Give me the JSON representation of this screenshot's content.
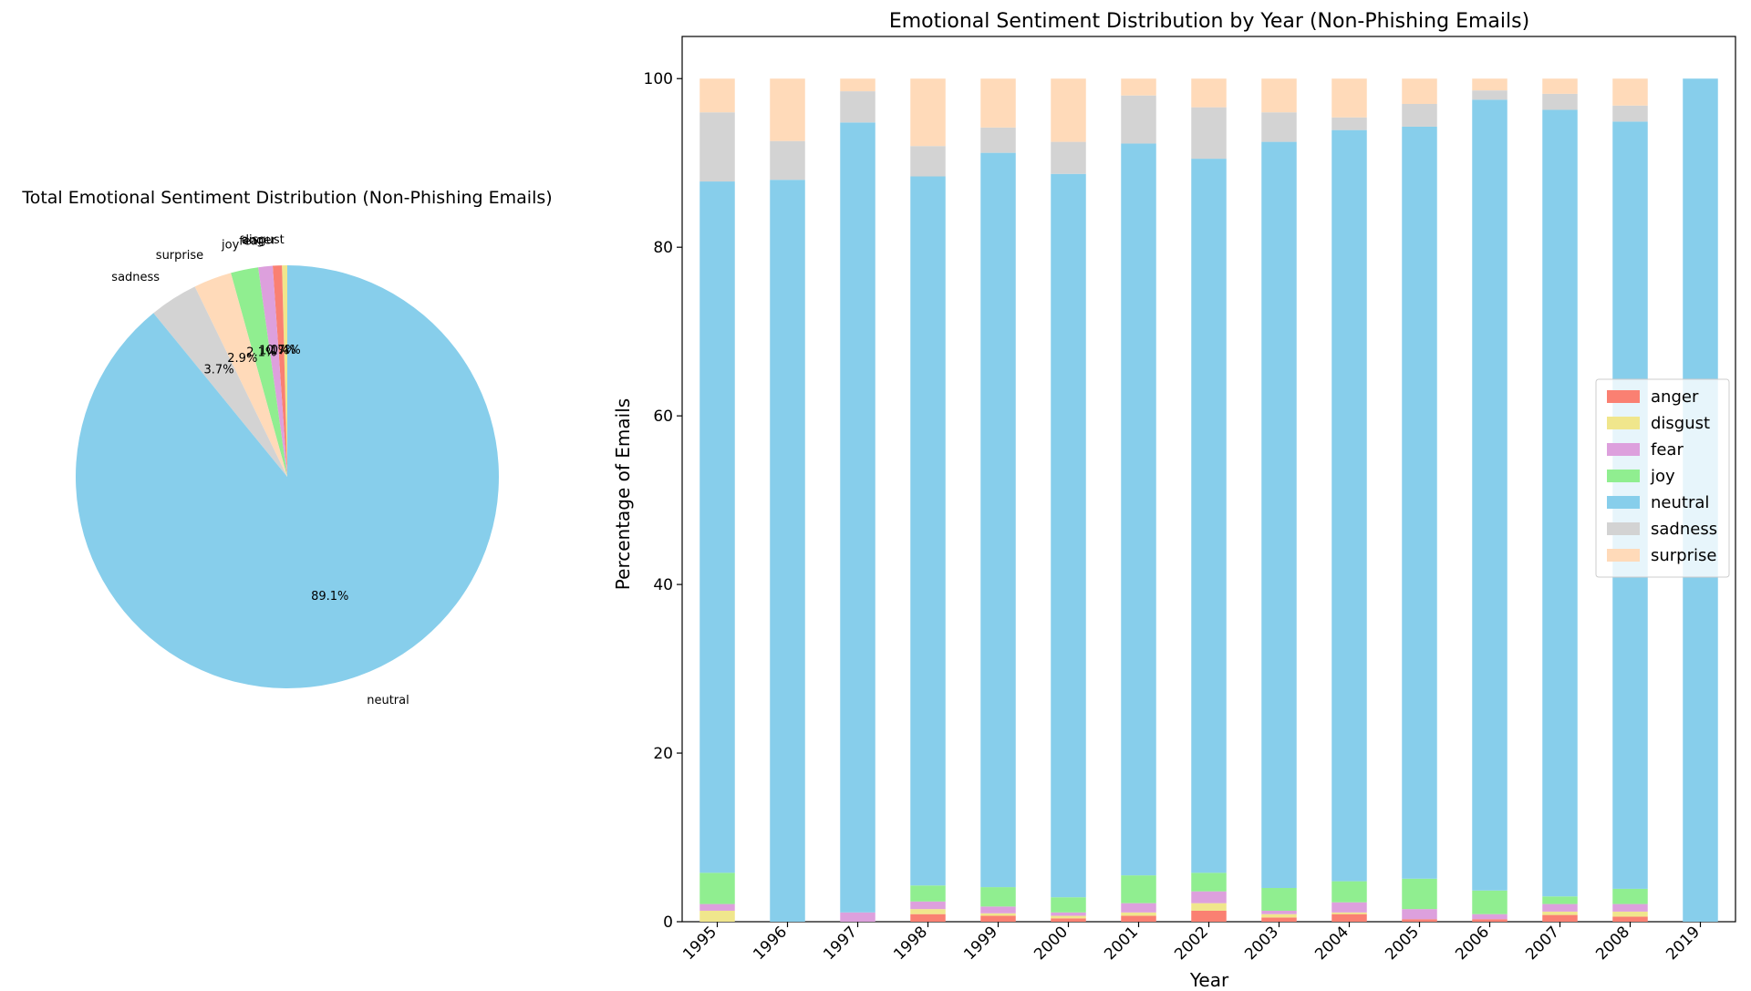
{
  "chart_data": [
    {
      "type": "pie",
      "title": "Total Emotional Sentiment Distribution (Non-Phishing Emails)",
      "start_angle": 90,
      "direction": "counterclockwise",
      "slices": [
        {
          "label": "disgust",
          "value": 0.4,
          "pct_label": "0.4%",
          "color": "#f0e68c"
        },
        {
          "label": "anger",
          "value": 0.7,
          "pct_label": "0.7%",
          "color": "#fa8072"
        },
        {
          "label": "fear",
          "value": 1.1,
          "pct_label": "1.1%",
          "color": "#dda0dd"
        },
        {
          "label": "joy",
          "value": 2.1,
          "pct_label": "2.1%",
          "color": "#90ee90"
        },
        {
          "label": "surprise",
          "value": 2.9,
          "pct_label": "2.9%",
          "color": "#ffdab9"
        },
        {
          "label": "sadness",
          "value": 3.7,
          "pct_label": "3.7%",
          "color": "#d3d3d3"
        },
        {
          "label": "neutral",
          "value": 89.1,
          "pct_label": "89.1%",
          "color": "#87ceeb"
        }
      ]
    },
    {
      "type": "bar",
      "stacked": true,
      "title": "Emotional Sentiment Distribution by Year (Non-Phishing Emails)",
      "xlabel": "Year",
      "ylabel": "Percentage of Emails",
      "ylim": [
        0,
        105
      ],
      "yticks": [
        0,
        20,
        40,
        60,
        80,
        100
      ],
      "categories": [
        "1995",
        "1996",
        "1997",
        "1998",
        "1999",
        "2000",
        "2001",
        "2002",
        "2003",
        "2004",
        "2005",
        "2006",
        "2007",
        "2008",
        "2019"
      ],
      "legend_position": "center-right",
      "series": [
        {
          "name": "anger",
          "color": "#fa8072",
          "values": [
            0,
            0,
            0,
            0.9,
            0.7,
            0.4,
            0.7,
            1.3,
            0.5,
            0.9,
            0.3,
            0.3,
            0.8,
            0.6,
            0
          ]
        },
        {
          "name": "disgust",
          "color": "#f0e68c",
          "values": [
            1.3,
            0,
            0,
            0.6,
            0.3,
            0.3,
            0.4,
            0.9,
            0.4,
            0.2,
            0,
            0,
            0.4,
            0.6,
            0
          ]
        },
        {
          "name": "fear",
          "color": "#dda0dd",
          "values": [
            0.8,
            0,
            1.1,
            0.9,
            0.8,
            0.4,
            1.1,
            1.4,
            0.4,
            1.2,
            1.2,
            0.6,
            0.9,
            0.9,
            0
          ]
        },
        {
          "name": "joy",
          "color": "#90ee90",
          "values": [
            3.7,
            0,
            0,
            1.9,
            2.3,
            1.8,
            3.3,
            2.2,
            2.7,
            2.5,
            3.6,
            2.8,
            0.9,
            1.8,
            0
          ]
        },
        {
          "name": "neutral",
          "color": "#87ceeb",
          "values": [
            82,
            88,
            93.7,
            84.1,
            87.1,
            85.8,
            86.8,
            84.7,
            88.5,
            89.1,
            89.2,
            93.8,
            93.3,
            91,
            100
          ]
        },
        {
          "name": "sadness",
          "color": "#d3d3d3",
          "values": [
            8.2,
            4.6,
            3.7,
            3.6,
            3.0,
            3.8,
            5.7,
            6.1,
            3.5,
            1.5,
            2.7,
            1.1,
            1.9,
            1.9,
            0
          ]
        },
        {
          "name": "surprise",
          "color": "#ffdab9",
          "values": [
            4.0,
            7.4,
            1.5,
            8.0,
            5.8,
            7.5,
            2.0,
            3.4,
            4.0,
            4.6,
            3.0,
            1.4,
            1.8,
            3.2,
            0
          ]
        }
      ]
    }
  ]
}
